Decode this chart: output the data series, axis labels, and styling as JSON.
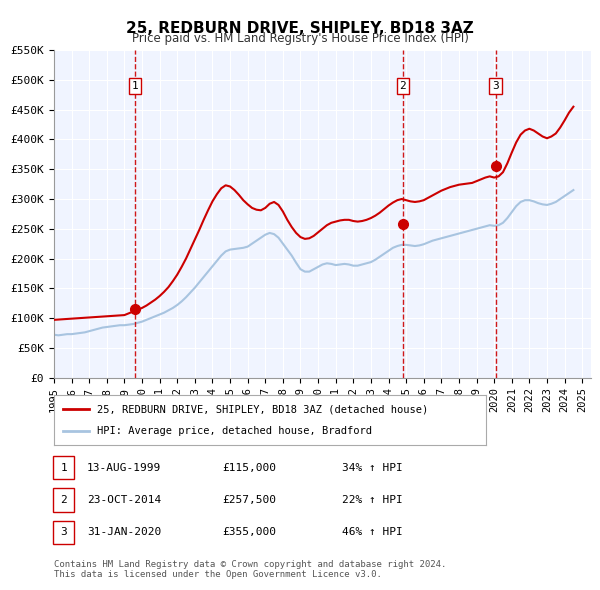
{
  "title_line1": "25, REDBURN DRIVE, SHIPLEY, BD18 3AZ",
  "title_line2": "Price paid vs. HM Land Registry's House Price Index (HPI)",
  "ylabel": "",
  "xlabel": "",
  "ylim": [
    0,
    550000
  ],
  "yticks": [
    0,
    50000,
    100000,
    150000,
    200000,
    250000,
    300000,
    350000,
    400000,
    450000,
    500000,
    550000
  ],
  "ytick_labels": [
    "£0",
    "£50K",
    "£100K",
    "£150K",
    "£200K",
    "£250K",
    "£300K",
    "£350K",
    "£400K",
    "£450K",
    "£500K",
    "£550K"
  ],
  "xmin": 1995.0,
  "xmax": 2025.5,
  "xticks": [
    1995,
    1996,
    1997,
    1998,
    1999,
    2000,
    2001,
    2002,
    2003,
    2004,
    2005,
    2006,
    2007,
    2008,
    2009,
    2010,
    2011,
    2012,
    2013,
    2014,
    2015,
    2016,
    2017,
    2018,
    2019,
    2020,
    2021,
    2022,
    2023,
    2024,
    2025
  ],
  "background_color": "#ffffff",
  "plot_bg_color": "#f0f4ff",
  "grid_color": "#ffffff",
  "hpi_color": "#a8c4e0",
  "price_color": "#cc0000",
  "sale_marker_color": "#cc0000",
  "vline_color": "#cc0000",
  "vline_style": "--",
  "transactions": [
    {
      "num": 1,
      "date_str": "13-AUG-1999",
      "year": 1999.62,
      "price": 115000,
      "pct": "34%",
      "dir": "↑"
    },
    {
      "num": 2,
      "date_str": "23-OCT-2014",
      "year": 2014.81,
      "price": 257500,
      "pct": "22%",
      "dir": "↑"
    },
    {
      "num": 3,
      "date_str": "31-JAN-2020",
      "year": 2020.08,
      "price": 355000,
      "pct": "46%",
      "dir": "↑"
    }
  ],
  "legend_price_label": "25, REDBURN DRIVE, SHIPLEY, BD18 3AZ (detached house)",
  "legend_hpi_label": "HPI: Average price, detached house, Bradford",
  "footnote": "Contains HM Land Registry data © Crown copyright and database right 2024.\nThis data is licensed under the Open Government Licence v3.0.",
  "hpi_data": {
    "years": [
      1995.0,
      1995.25,
      1995.5,
      1995.75,
      1996.0,
      1996.25,
      1996.5,
      1996.75,
      1997.0,
      1997.25,
      1997.5,
      1997.75,
      1998.0,
      1998.25,
      1998.5,
      1998.75,
      1999.0,
      1999.25,
      1999.5,
      1999.75,
      2000.0,
      2000.25,
      2000.5,
      2000.75,
      2001.0,
      2001.25,
      2001.5,
      2001.75,
      2002.0,
      2002.25,
      2002.5,
      2002.75,
      2003.0,
      2003.25,
      2003.5,
      2003.75,
      2004.0,
      2004.25,
      2004.5,
      2004.75,
      2005.0,
      2005.25,
      2005.5,
      2005.75,
      2006.0,
      2006.25,
      2006.5,
      2006.75,
      2007.0,
      2007.25,
      2007.5,
      2007.75,
      2008.0,
      2008.25,
      2008.5,
      2008.75,
      2009.0,
      2009.25,
      2009.5,
      2009.75,
      2010.0,
      2010.25,
      2010.5,
      2010.75,
      2011.0,
      2011.25,
      2011.5,
      2011.75,
      2012.0,
      2012.25,
      2012.5,
      2012.75,
      2013.0,
      2013.25,
      2013.5,
      2013.75,
      2014.0,
      2014.25,
      2014.5,
      2014.75,
      2015.0,
      2015.25,
      2015.5,
      2015.75,
      2016.0,
      2016.25,
      2016.5,
      2016.75,
      2017.0,
      2017.25,
      2017.5,
      2017.75,
      2018.0,
      2018.25,
      2018.5,
      2018.75,
      2019.0,
      2019.25,
      2019.5,
      2019.75,
      2020.0,
      2020.25,
      2020.5,
      2020.75,
      2021.0,
      2021.25,
      2021.5,
      2021.75,
      2022.0,
      2022.25,
      2022.5,
      2022.75,
      2023.0,
      2023.25,
      2023.5,
      2023.75,
      2024.0,
      2024.25,
      2024.5
    ],
    "values": [
      72000,
      71000,
      72000,
      73000,
      73000,
      74000,
      75000,
      76000,
      78000,
      80000,
      82000,
      84000,
      85000,
      86000,
      87000,
      88000,
      88000,
      89000,
      90000,
      92000,
      94000,
      97000,
      100000,
      103000,
      106000,
      109000,
      113000,
      117000,
      122000,
      128000,
      135000,
      143000,
      151000,
      160000,
      169000,
      178000,
      187000,
      196000,
      205000,
      212000,
      215000,
      216000,
      217000,
      218000,
      220000,
      225000,
      230000,
      235000,
      240000,
      243000,
      241000,
      235000,
      225000,
      215000,
      205000,
      193000,
      182000,
      178000,
      178000,
      182000,
      186000,
      190000,
      192000,
      191000,
      189000,
      190000,
      191000,
      190000,
      188000,
      188000,
      190000,
      192000,
      194000,
      198000,
      203000,
      208000,
      213000,
      218000,
      221000,
      223000,
      223000,
      222000,
      221000,
      222000,
      224000,
      227000,
      230000,
      232000,
      234000,
      236000,
      238000,
      240000,
      242000,
      244000,
      246000,
      248000,
      250000,
      252000,
      254000,
      256000,
      255000,
      256000,
      260000,
      268000,
      278000,
      288000,
      295000,
      298000,
      298000,
      296000,
      293000,
      291000,
      290000,
      292000,
      295000,
      300000,
      305000,
      310000,
      315000
    ]
  },
  "price_data": {
    "years": [
      1995.0,
      1995.25,
      1995.5,
      1995.75,
      1996.0,
      1996.25,
      1996.5,
      1996.75,
      1997.0,
      1997.25,
      1997.5,
      1997.75,
      1998.0,
      1998.25,
      1998.5,
      1998.75,
      1999.0,
      1999.25,
      1999.5,
      1999.75,
      2000.0,
      2000.25,
      2000.5,
      2000.75,
      2001.0,
      2001.25,
      2001.5,
      2001.75,
      2002.0,
      2002.25,
      2002.5,
      2002.75,
      2003.0,
      2003.25,
      2003.5,
      2003.75,
      2004.0,
      2004.25,
      2004.5,
      2004.75,
      2005.0,
      2005.25,
      2005.5,
      2005.75,
      2006.0,
      2006.25,
      2006.5,
      2006.75,
      2007.0,
      2007.25,
      2007.5,
      2007.75,
      2008.0,
      2008.25,
      2008.5,
      2008.75,
      2009.0,
      2009.25,
      2009.5,
      2009.75,
      2010.0,
      2010.25,
      2010.5,
      2010.75,
      2011.0,
      2011.25,
      2011.5,
      2011.75,
      2012.0,
      2012.25,
      2012.5,
      2012.75,
      2013.0,
      2013.25,
      2013.5,
      2013.75,
      2014.0,
      2014.25,
      2014.5,
      2014.75,
      2015.0,
      2015.25,
      2015.5,
      2015.75,
      2016.0,
      2016.25,
      2016.5,
      2016.75,
      2017.0,
      2017.25,
      2017.5,
      2017.75,
      2018.0,
      2018.25,
      2018.5,
      2018.75,
      2019.0,
      2019.25,
      2019.5,
      2019.75,
      2020.0,
      2020.25,
      2020.5,
      2020.75,
      2021.0,
      2021.25,
      2021.5,
      2021.75,
      2022.0,
      2022.25,
      2022.5,
      2022.75,
      2023.0,
      2023.25,
      2023.5,
      2023.75,
      2024.0,
      2024.25,
      2024.5
    ],
    "values": [
      97000,
      97500,
      98000,
      98500,
      99000,
      99500,
      100000,
      100500,
      101000,
      101500,
      102000,
      102500,
      103000,
      103500,
      104000,
      104500,
      105000,
      108000,
      111000,
      114000,
      117000,
      121000,
      126000,
      131000,
      137000,
      144000,
      152000,
      162000,
      173000,
      186000,
      200000,
      216000,
      232000,
      248000,
      265000,
      281000,
      296000,
      308000,
      318000,
      323000,
      321000,
      315000,
      307000,
      298000,
      291000,
      285000,
      282000,
      281000,
      285000,
      292000,
      295000,
      290000,
      279000,
      265000,
      253000,
      243000,
      236000,
      233000,
      234000,
      238000,
      244000,
      250000,
      256000,
      260000,
      262000,
      264000,
      265000,
      265000,
      263000,
      262000,
      263000,
      265000,
      268000,
      272000,
      277000,
      283000,
      289000,
      294000,
      298000,
      300000,
      298000,
      296000,
      295000,
      296000,
      298000,
      302000,
      306000,
      310000,
      314000,
      317000,
      320000,
      322000,
      324000,
      325000,
      326000,
      327000,
      330000,
      333000,
      336000,
      338000,
      336000,
      338000,
      345000,
      360000,
      378000,
      395000,
      408000,
      415000,
      418000,
      415000,
      410000,
      405000,
      402000,
      405000,
      410000,
      420000,
      432000,
      445000,
      455000
    ]
  }
}
